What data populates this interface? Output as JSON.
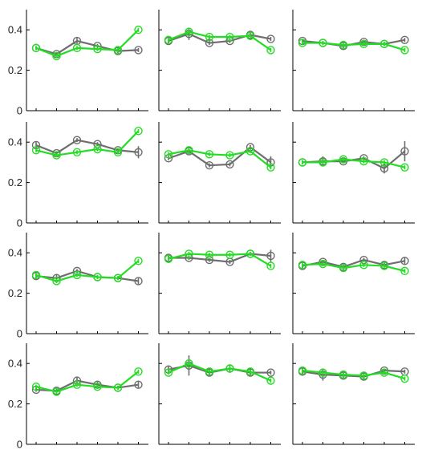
{
  "figure": {
    "layout": {
      "rows": 4,
      "cols": 3
    },
    "y_ticks": [
      0,
      0.2,
      0.4
    ],
    "y_tick_labels": [
      "0",
      "0.2",
      "0.4"
    ],
    "colors": {
      "gray": "#6e6e6e",
      "green": "#22dd22",
      "axis": "#000000"
    }
  },
  "chart_data": [
    {
      "type": "line",
      "row": 0,
      "col": 0,
      "ylim": [
        0,
        0.5
      ],
      "x": [
        1,
        2,
        3,
        4,
        5,
        6
      ],
      "series": [
        {
          "color": "gray",
          "values": [
            0.31,
            0.28,
            0.345,
            0.32,
            0.295,
            0.3
          ],
          "err": [
            0.01,
            0.01,
            0.015,
            0.01,
            0.01,
            0.01
          ]
        },
        {
          "color": "green",
          "values": [
            0.31,
            0.27,
            0.31,
            0.305,
            0.3,
            0.4
          ],
          "err": [
            0.01,
            0.01,
            0.01,
            0.01,
            0.01,
            0.01
          ]
        }
      ]
    },
    {
      "type": "line",
      "row": 0,
      "col": 1,
      "ylim": [
        0,
        0.5
      ],
      "x": [
        1,
        2,
        3,
        4,
        5,
        6
      ],
      "series": [
        {
          "color": "gray",
          "values": [
            0.345,
            0.38,
            0.335,
            0.345,
            0.375,
            0.355
          ],
          "err": [
            0.01,
            0.03,
            0.01,
            0.01,
            0.01,
            0.01
          ]
        },
        {
          "color": "green",
          "values": [
            0.35,
            0.39,
            0.365,
            0.365,
            0.37,
            0.3
          ],
          "err": [
            0.01,
            0.01,
            0.01,
            0.01,
            0.01,
            0.01
          ]
        }
      ]
    },
    {
      "type": "line",
      "row": 0,
      "col": 2,
      "ylim": [
        0,
        0.5
      ],
      "x": [
        1,
        2,
        3,
        4,
        5,
        6
      ],
      "series": [
        {
          "color": "gray",
          "values": [
            0.345,
            0.335,
            0.32,
            0.34,
            0.33,
            0.35
          ],
          "err": [
            0.01,
            0.01,
            0.01,
            0.01,
            0.01,
            0.01
          ]
        },
        {
          "color": "green",
          "values": [
            0.335,
            0.335,
            0.325,
            0.33,
            0.33,
            0.3
          ],
          "err": [
            0.01,
            0.01,
            0.01,
            0.01,
            0.01,
            0.01
          ]
        }
      ]
    },
    {
      "type": "line",
      "row": 1,
      "col": 0,
      "ylim": [
        0,
        0.5
      ],
      "x": [
        1,
        2,
        3,
        4,
        5,
        6
      ],
      "series": [
        {
          "color": "gray",
          "values": [
            0.385,
            0.345,
            0.41,
            0.39,
            0.36,
            0.35
          ],
          "err": [
            0.015,
            0.01,
            0.01,
            0.01,
            0.01,
            0.03
          ]
        },
        {
          "color": "green",
          "values": [
            0.36,
            0.335,
            0.35,
            0.365,
            0.35,
            0.455
          ],
          "err": [
            0.01,
            0.01,
            0.01,
            0.01,
            0.01,
            0.01
          ]
        }
      ]
    },
    {
      "type": "line",
      "row": 1,
      "col": 1,
      "ylim": [
        0,
        0.5
      ],
      "x": [
        1,
        2,
        3,
        4,
        5,
        6
      ],
      "series": [
        {
          "color": "gray",
          "values": [
            0.32,
            0.355,
            0.285,
            0.29,
            0.375,
            0.3
          ],
          "err": [
            0.01,
            0.01,
            0.01,
            0.01,
            0.01,
            0.03
          ]
        },
        {
          "color": "green",
          "values": [
            0.34,
            0.36,
            0.34,
            0.335,
            0.355,
            0.275
          ],
          "err": [
            0.01,
            0.01,
            0.01,
            0.01,
            0.01,
            0.01
          ]
        }
      ]
    },
    {
      "type": "line",
      "row": 1,
      "col": 2,
      "ylim": [
        0,
        0.5
      ],
      "x": [
        1,
        2,
        3,
        4,
        5,
        6
      ],
      "series": [
        {
          "color": "gray",
          "values": [
            0.3,
            0.305,
            0.305,
            0.32,
            0.27,
            0.355
          ],
          "err": [
            0.01,
            0.025,
            0.01,
            0.01,
            0.025,
            0.05
          ]
        },
        {
          "color": "green",
          "values": [
            0.3,
            0.3,
            0.315,
            0.305,
            0.3,
            0.275
          ],
          "err": [
            0.01,
            0.01,
            0.01,
            0.01,
            0.01,
            0.01
          ]
        }
      ]
    },
    {
      "type": "line",
      "row": 2,
      "col": 0,
      "ylim": [
        0,
        0.5
      ],
      "x": [
        1,
        2,
        3,
        4,
        5,
        6
      ],
      "series": [
        {
          "color": "gray",
          "values": [
            0.285,
            0.275,
            0.31,
            0.28,
            0.275,
            0.26
          ],
          "err": [
            0.01,
            0.02,
            0.01,
            0.01,
            0.01,
            0.015
          ]
        },
        {
          "color": "green",
          "values": [
            0.29,
            0.26,
            0.29,
            0.28,
            0.275,
            0.36
          ],
          "err": [
            0.01,
            0.01,
            0.01,
            0.01,
            0.01,
            0.01
          ]
        }
      ]
    },
    {
      "type": "line",
      "row": 2,
      "col": 1,
      "ylim": [
        0,
        0.5
      ],
      "x": [
        1,
        2,
        3,
        4,
        5,
        6
      ],
      "series": [
        {
          "color": "gray",
          "values": [
            0.375,
            0.375,
            0.365,
            0.355,
            0.395,
            0.385
          ],
          "err": [
            0.01,
            0.01,
            0.01,
            0.01,
            0.01,
            0.03
          ]
        },
        {
          "color": "green",
          "values": [
            0.37,
            0.395,
            0.39,
            0.39,
            0.395,
            0.335
          ],
          "err": [
            0.01,
            0.01,
            0.01,
            0.01,
            0.01,
            0.01
          ]
        }
      ]
    },
    {
      "type": "line",
      "row": 2,
      "col": 2,
      "ylim": [
        0,
        0.5
      ],
      "x": [
        1,
        2,
        3,
        4,
        5,
        6
      ],
      "series": [
        {
          "color": "gray",
          "values": [
            0.335,
            0.355,
            0.33,
            0.365,
            0.34,
            0.36
          ],
          "err": [
            0.01,
            0.01,
            0.01,
            0.01,
            0.01,
            0.015
          ]
        },
        {
          "color": "green",
          "values": [
            0.34,
            0.345,
            0.325,
            0.34,
            0.335,
            0.31
          ],
          "err": [
            0.01,
            0.01,
            0.01,
            0.01,
            0.01,
            0.01
          ]
        }
      ]
    },
    {
      "type": "line",
      "row": 3,
      "col": 0,
      "ylim": [
        0,
        0.5
      ],
      "x": [
        1,
        2,
        3,
        4,
        5,
        6
      ],
      "series": [
        {
          "color": "gray",
          "values": [
            0.27,
            0.265,
            0.315,
            0.295,
            0.28,
            0.295
          ],
          "err": [
            0.01,
            0.01,
            0.02,
            0.015,
            0.01,
            0.015
          ]
        },
        {
          "color": "green",
          "values": [
            0.285,
            0.26,
            0.295,
            0.285,
            0.28,
            0.36
          ],
          "err": [
            0.01,
            0.01,
            0.01,
            0.01,
            0.01,
            0.01
          ]
        }
      ]
    },
    {
      "type": "line",
      "row": 3,
      "col": 1,
      "ylim": [
        0,
        0.5
      ],
      "x": [
        1,
        2,
        3,
        4,
        5,
        6
      ],
      "series": [
        {
          "color": "gray",
          "values": [
            0.37,
            0.39,
            0.355,
            0.375,
            0.355,
            0.355
          ],
          "err": [
            0.015,
            0.05,
            0.02,
            0.015,
            0.02,
            0.01
          ]
        },
        {
          "color": "green",
          "values": [
            0.355,
            0.4,
            0.36,
            0.375,
            0.36,
            0.315
          ],
          "err": [
            0.01,
            0.01,
            0.01,
            0.01,
            0.01,
            0.01
          ]
        }
      ]
    },
    {
      "type": "line",
      "row": 3,
      "col": 2,
      "ylim": [
        0,
        0.5
      ],
      "x": [
        1,
        2,
        3,
        4,
        5,
        6
      ],
      "series": [
        {
          "color": "gray",
          "values": [
            0.36,
            0.345,
            0.34,
            0.335,
            0.365,
            0.36
          ],
          "err": [
            0.02,
            0.03,
            0.015,
            0.015,
            0.01,
            0.01
          ]
        },
        {
          "color": "green",
          "values": [
            0.365,
            0.355,
            0.345,
            0.34,
            0.355,
            0.325
          ],
          "err": [
            0.01,
            0.01,
            0.01,
            0.01,
            0.01,
            0.01
          ]
        }
      ]
    }
  ]
}
